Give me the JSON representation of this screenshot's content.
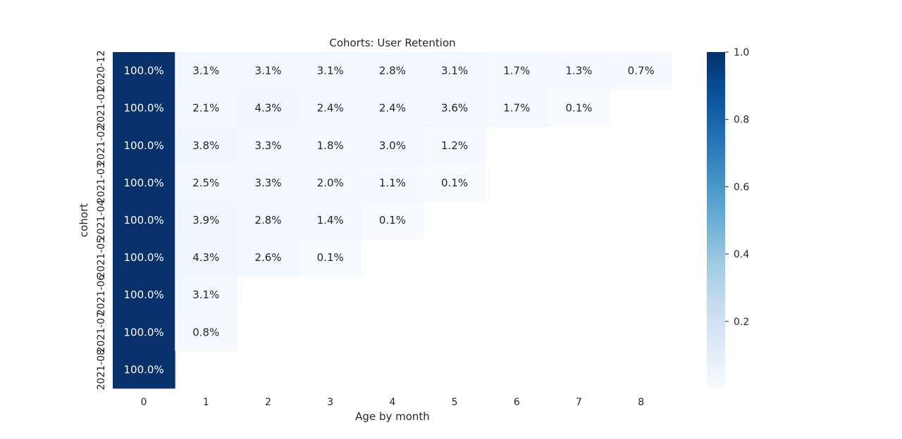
{
  "chart_data": {
    "type": "heatmap",
    "title": "Cohorts: User Retention",
    "xlabel": "Age by month",
    "ylabel": "cohort",
    "x_categories": [
      "0",
      "1",
      "2",
      "3",
      "4",
      "5",
      "6",
      "7",
      "8"
    ],
    "y_categories": [
      "2020-12",
      "2021-01",
      "2021-02",
      "2021-03",
      "2021-04",
      "2021-05",
      "2021-06",
      "2021-07",
      "2021-08"
    ],
    "values": [
      [
        1.0,
        0.031,
        0.031,
        0.031,
        0.028,
        0.031,
        0.017,
        0.013,
        0.007
      ],
      [
        1.0,
        0.021,
        0.043,
        0.024,
        0.024,
        0.036,
        0.017,
        0.001,
        null
      ],
      [
        1.0,
        0.038,
        0.033,
        0.018,
        0.03,
        0.012,
        null,
        null,
        null
      ],
      [
        1.0,
        0.025,
        0.033,
        0.02,
        0.011,
        0.001,
        null,
        null,
        null
      ],
      [
        1.0,
        0.039,
        0.028,
        0.014,
        0.001,
        null,
        null,
        null,
        null
      ],
      [
        1.0,
        0.043,
        0.026,
        0.001,
        null,
        null,
        null,
        null,
        null
      ],
      [
        1.0,
        0.031,
        null,
        null,
        null,
        null,
        null,
        null,
        null
      ],
      [
        1.0,
        0.008,
        null,
        null,
        null,
        null,
        null,
        null,
        null
      ],
      [
        1.0,
        null,
        null,
        null,
        null,
        null,
        null,
        null,
        null
      ]
    ],
    "annotations": [
      [
        "100.0%",
        "3.1%",
        "3.1%",
        "3.1%",
        "2.8%",
        "3.1%",
        "1.7%",
        "1.3%",
        "0.7%"
      ],
      [
        "100.0%",
        "2.1%",
        "4.3%",
        "2.4%",
        "2.4%",
        "3.6%",
        "1.7%",
        "0.1%",
        ""
      ],
      [
        "100.0%",
        "3.8%",
        "3.3%",
        "1.8%",
        "3.0%",
        "1.2%",
        "",
        "",
        ""
      ],
      [
        "100.0%",
        "2.5%",
        "3.3%",
        "2.0%",
        "1.1%",
        "0.1%",
        "",
        "",
        ""
      ],
      [
        "100.0%",
        "3.9%",
        "2.8%",
        "1.4%",
        "0.1%",
        "",
        "",
        "",
        ""
      ],
      [
        "100.0%",
        "4.3%",
        "2.6%",
        "0.1%",
        "",
        "",
        "",
        "",
        ""
      ],
      [
        "100.0%",
        "3.1%",
        "",
        "",
        "",
        "",
        "",
        "",
        ""
      ],
      [
        "100.0%",
        "0.8%",
        "",
        "",
        "",
        "",
        "",
        "",
        ""
      ],
      [
        "100.0%",
        "",
        "",
        "",
        "",
        "",
        "",
        "",
        ""
      ]
    ],
    "colorscale": "Blues",
    "colorbar": {
      "range": [
        0.001,
        1.0
      ],
      "ticks": [
        0.2,
        0.4,
        0.6,
        0.8,
        1.0
      ],
      "tick_labels": [
        "0.2",
        "0.4",
        "0.6",
        "0.8",
        "1.0"
      ]
    },
    "grid": false,
    "legend": "colorbar-right"
  }
}
